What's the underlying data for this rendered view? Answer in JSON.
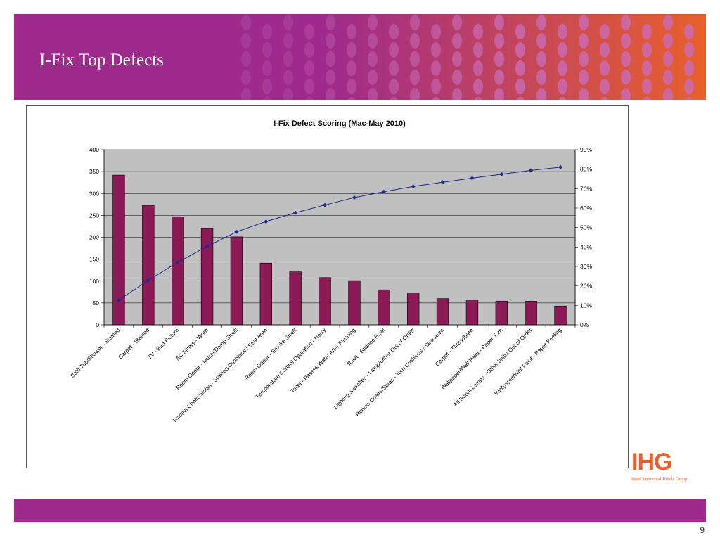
{
  "slide": {
    "title": "I-Fix Top Defects",
    "page_number": "9",
    "brand": {
      "logo_text": "IHG",
      "tagline": "InterContinental Hotels Group"
    },
    "colors": {
      "header": "#9e2a8c",
      "footer": "#9e2a8c",
      "pattern_warm": "#e8602b",
      "logo": "#e8602b"
    }
  },
  "chart_data": {
    "type": "bar",
    "title": "I-Fix Defect Scoring (Mac-May 2010)",
    "categories": [
      "Bath Tub/Shower - Stained",
      "Carpet - Stained",
      "TV - Bad Picture",
      "AC Filters - Worn",
      "Room Odour - Musty/Damp Smell",
      "Rooms Chairs/Sofas - Stained Cushions / Seat Area",
      "Room Odour - Smoke Smell",
      "Temperature Control Operation - Noisy",
      "Toilet - Passes Water After Flushing",
      "Toilet - Stained Bowl",
      "Lighting Switches - Lamp/Other Out of Order",
      "Rooms Chairs/Sofas - Torn Cushions / Seat Area",
      "Carpet - Threadbare",
      "Wallpaper/Wall Paint - Paper Torn",
      "All Room Lamps - Other bulbs Out of Order",
      "Wallpaper/Wall Paint - Paper Peeling"
    ],
    "series": [
      {
        "type": "bar",
        "axis": "left",
        "color": "#8b1a57",
        "values": [
          342,
          273,
          247,
          221,
          201,
          141,
          121,
          108,
          101,
          80,
          73,
          60,
          57,
          54,
          54,
          43
        ]
      },
      {
        "type": "line",
        "axis": "right",
        "color": "#1f2a8c",
        "values": [
          12.7,
          22.9,
          32.1,
          40.3,
          47.8,
          53.1,
          57.6,
          61.6,
          65.4,
          68.4,
          71.1,
          73.3,
          75.4,
          77.4,
          79.4,
          81.0
        ]
      }
    ],
    "y_left": {
      "min": 0,
      "max": 400,
      "ticks": [
        "0",
        "50",
        "100",
        "150",
        "200",
        "250",
        "300",
        "350",
        "400"
      ]
    },
    "y_right": {
      "min": 0,
      "max": 90,
      "ticks": [
        "0%",
        "10%",
        "20%",
        "30%",
        "40%",
        "50%",
        "60%",
        "70%",
        "80%",
        "90%"
      ]
    },
    "grid": true,
    "plot_background": "#c0c0c0",
    "legend": "none"
  }
}
